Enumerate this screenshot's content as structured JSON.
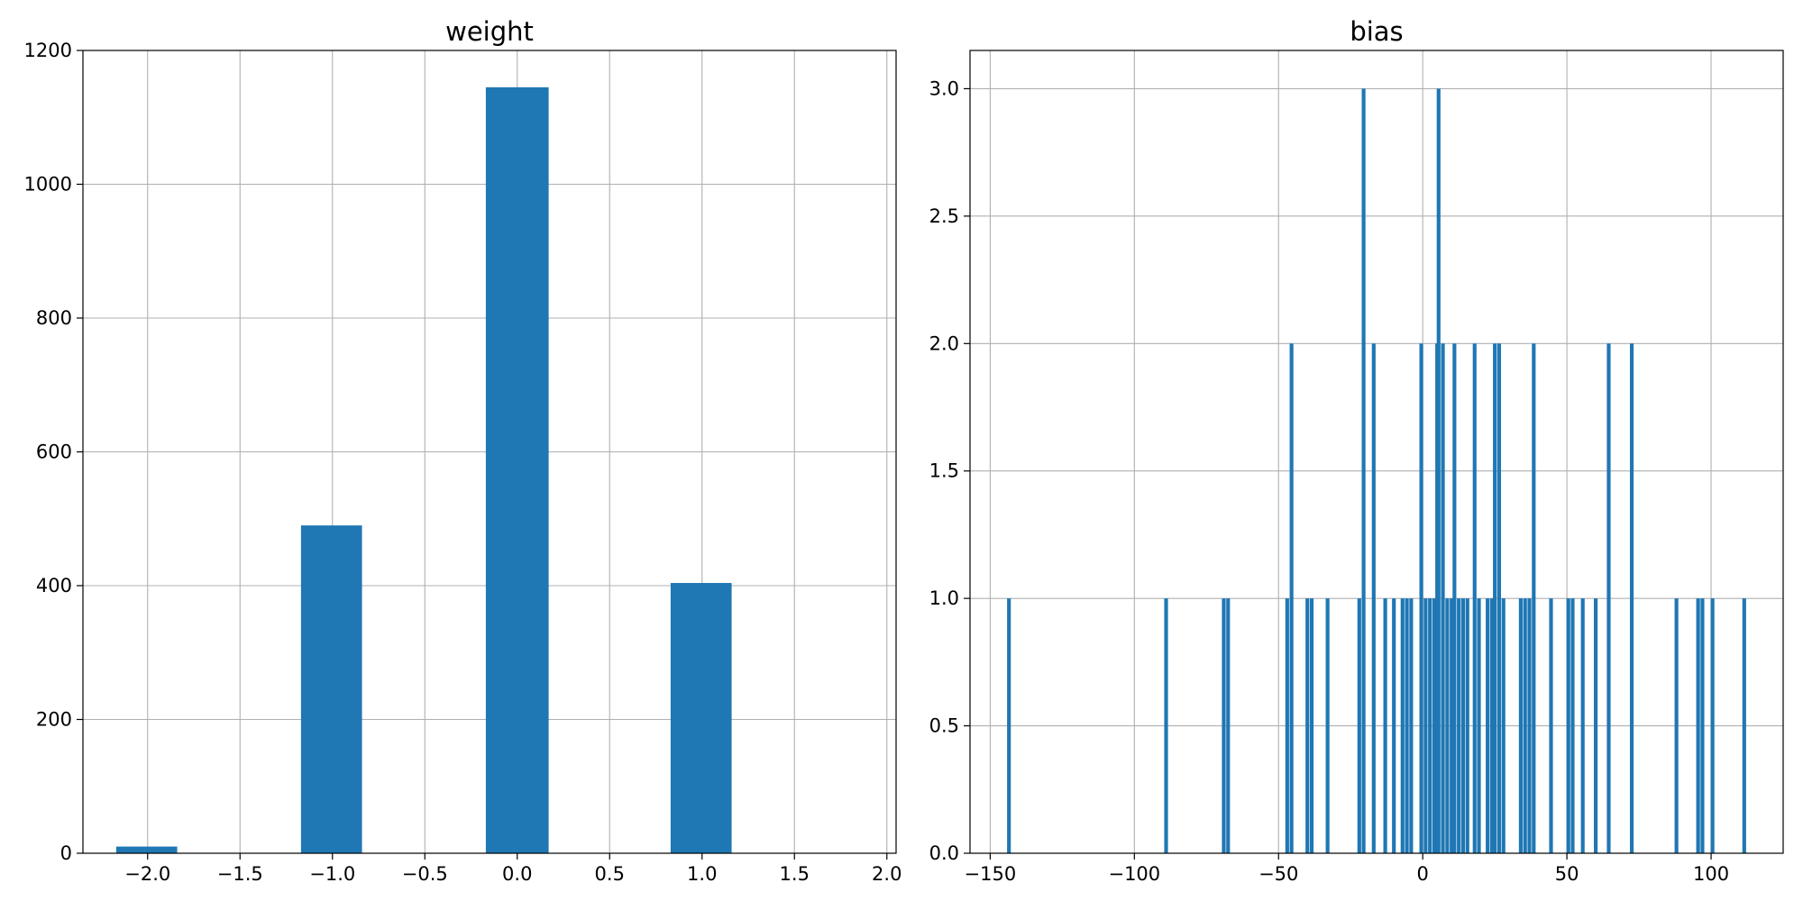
{
  "chart_data": [
    {
      "type": "bar",
      "title": "weight",
      "xlabel": "",
      "ylabel": "",
      "xlim": [
        -2.35,
        2.05
      ],
      "ylim": [
        0,
        1200
      ],
      "xticks": [
        -2.0,
        -1.5,
        -1.0,
        -0.5,
        0.0,
        0.5,
        1.0,
        1.5,
        2.0
      ],
      "xtick_labels": [
        "−2.0",
        "−1.5",
        "−1.0",
        "−0.5",
        "0.0",
        "0.5",
        "1.0",
        "1.5",
        "2.0"
      ],
      "yticks": [
        0,
        200,
        400,
        600,
        800,
        1000,
        1200
      ],
      "ytick_labels": [
        "0",
        "200",
        "400",
        "600",
        "800",
        "1000",
        "1200"
      ],
      "grid": true,
      "bar_color": "#1f77b4",
      "bars": [
        {
          "x0": -2.17,
          "x1": -1.84,
          "value": 10
        },
        {
          "x0": -1.17,
          "x1": -0.84,
          "value": 490
        },
        {
          "x0": -0.17,
          "x1": 0.17,
          "value": 1145
        },
        {
          "x0": 0.83,
          "x1": 1.16,
          "value": 404
        }
      ]
    },
    {
      "type": "bar",
      "title": "bias",
      "xlabel": "",
      "ylabel": "",
      "xlim": [
        -157,
        125
      ],
      "ylim": [
        0,
        3.15
      ],
      "xticks": [
        -150,
        -100,
        -50,
        0,
        50,
        100
      ],
      "xtick_labels": [
        "−150",
        "−100",
        "−50",
        "0",
        "50",
        "100"
      ],
      "yticks": [
        0,
        0.5,
        1.0,
        1.5,
        2.0,
        2.5,
        3.0
      ],
      "ytick_labels": [
        "0.0",
        "0.5",
        "1.0",
        "1.5",
        "2.0",
        "2.5",
        "3.0"
      ],
      "grid": true,
      "bar_color": "#1f77b4",
      "bar_width": 1.3,
      "bars": [
        {
          "x": -143.5,
          "value": 1
        },
        {
          "x": -89,
          "value": 1
        },
        {
          "x": -69,
          "value": 1
        },
        {
          "x": -67.5,
          "value": 1
        },
        {
          "x": -47,
          "value": 1
        },
        {
          "x": -45.5,
          "value": 2
        },
        {
          "x": -40,
          "value": 1
        },
        {
          "x": -38.5,
          "value": 1
        },
        {
          "x": -33,
          "value": 1
        },
        {
          "x": -22,
          "value": 1
        },
        {
          "x": -20.5,
          "value": 3
        },
        {
          "x": -17,
          "value": 2
        },
        {
          "x": -13,
          "value": 1
        },
        {
          "x": -10,
          "value": 1
        },
        {
          "x": -7,
          "value": 1
        },
        {
          "x": -5.5,
          "value": 1
        },
        {
          "x": -4,
          "value": 1
        },
        {
          "x": -0.5,
          "value": 2
        },
        {
          "x": 1,
          "value": 1
        },
        {
          "x": 2.5,
          "value": 1
        },
        {
          "x": 4,
          "value": 1
        },
        {
          "x": 5,
          "value": 2
        },
        {
          "x": 5.5,
          "value": 3
        },
        {
          "x": 7,
          "value": 2
        },
        {
          "x": 8.5,
          "value": 1
        },
        {
          "x": 10,
          "value": 1
        },
        {
          "x": 11,
          "value": 2
        },
        {
          "x": 12.5,
          "value": 1
        },
        {
          "x": 14,
          "value": 1
        },
        {
          "x": 15.5,
          "value": 1
        },
        {
          "x": 18,
          "value": 2
        },
        {
          "x": 19.5,
          "value": 1
        },
        {
          "x": 22.5,
          "value": 1
        },
        {
          "x": 24,
          "value": 1
        },
        {
          "x": 25,
          "value": 2
        },
        {
          "x": 26.5,
          "value": 2
        },
        {
          "x": 28,
          "value": 1
        },
        {
          "x": 34,
          "value": 1
        },
        {
          "x": 35.5,
          "value": 1
        },
        {
          "x": 37,
          "value": 1
        },
        {
          "x": 38.5,
          "value": 2
        },
        {
          "x": 44.5,
          "value": 1
        },
        {
          "x": 50.5,
          "value": 1
        },
        {
          "x": 52,
          "value": 1
        },
        {
          "x": 55.5,
          "value": 1
        },
        {
          "x": 60,
          "value": 1
        },
        {
          "x": 64.5,
          "value": 2
        },
        {
          "x": 72.5,
          "value": 2
        },
        {
          "x": 88,
          "value": 1
        },
        {
          "x": 95.5,
          "value": 1
        },
        {
          "x": 97,
          "value": 1
        },
        {
          "x": 100.5,
          "value": 1
        },
        {
          "x": 111.5,
          "value": 1
        }
      ]
    }
  ]
}
